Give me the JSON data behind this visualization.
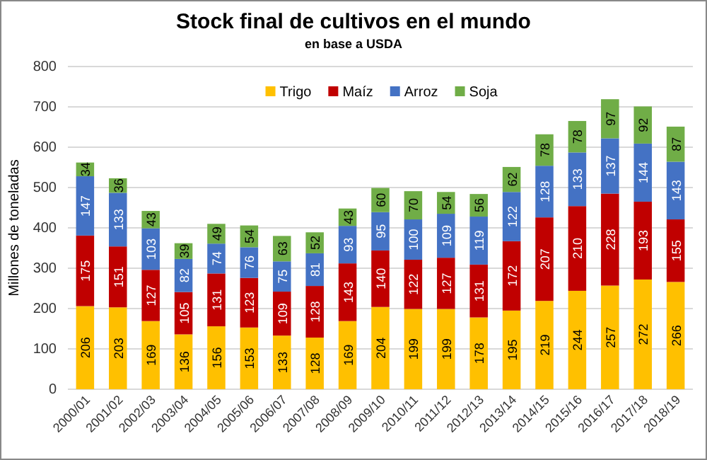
{
  "chart_data": {
    "type": "bar",
    "stacked": true,
    "title": "Stock final de cultivos en el mundo",
    "subtitle": "en base a USDA",
    "ylabel": "Millones de toneladas",
    "categories": [
      "2000/01",
      "2001/02",
      "2002/03",
      "2003/04",
      "2004/05",
      "2005/06",
      "2006/07",
      "2007/08",
      "2008/09",
      "2009/10",
      "2010/11",
      "2011/12",
      "2012/13",
      "2013/14",
      "2014/15",
      "2015/16",
      "2016/17",
      "2017/18",
      "2018/19"
    ],
    "series": [
      {
        "name": "Trigo",
        "color": "#ffc000",
        "values": [
          206,
          203,
          169,
          136,
          156,
          153,
          133,
          128,
          169,
          204,
          199,
          199,
          178,
          195,
          219,
          244,
          257,
          272,
          266
        ]
      },
      {
        "name": "Maíz",
        "color": "#c00000",
        "values": [
          175,
          151,
          127,
          105,
          131,
          123,
          109,
          128,
          143,
          140,
          122,
          127,
          131,
          172,
          207,
          210,
          228,
          193,
          155
        ]
      },
      {
        "name": "Arroz",
        "color": "#4472c4",
        "values": [
          147,
          133,
          103,
          82,
          74,
          76,
          75,
          81,
          93,
          95,
          100,
          109,
          119,
          122,
          128,
          133,
          137,
          144,
          143
        ]
      },
      {
        "name": "Soja",
        "color": "#70ad47",
        "values": [
          34,
          36,
          43,
          39,
          49,
          54,
          63,
          52,
          43,
          60,
          70,
          54,
          56,
          62,
          78,
          78,
          97,
          92,
          87
        ]
      }
    ],
    "ylim": [
      0,
      800
    ],
    "yticks": [
      0,
      100,
      200,
      300,
      400,
      500,
      600,
      700,
      800
    ],
    "grid": "y",
    "legend": "top",
    "data_labels": true
  }
}
